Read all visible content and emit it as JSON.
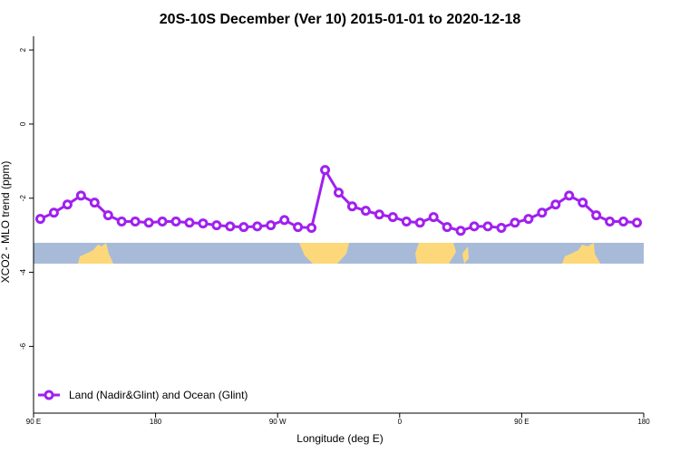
{
  "chart_data": {
    "type": "line",
    "title": "20S-10S December (Ver 10)   2015-01-01 to 2020-12-18",
    "x_label": "Longitude (deg E)",
    "y_label": "XCO2 - MLO trend (ppm)",
    "xlim": [
      90,
      540
    ],
    "xticks": [
      {
        "value": 90,
        "label": "90 E"
      },
      180,
      {
        "value": 270,
        "label": "90 W"
      },
      {
        "value": 360,
        "label": "0"
      },
      {
        "value": 450,
        "label": "90 E"
      },
      {
        "value": 540,
        "label": "180"
      }
    ],
    "ylim": [
      -7.8,
      2.37
    ],
    "yticks": [
      2,
      0,
      -2,
      -4,
      -6
    ],
    "legend": "bottom-left",
    "x": [
      95,
      105,
      115,
      125,
      135,
      145,
      155,
      165,
      175,
      185,
      195,
      205,
      215,
      225,
      235,
      245,
      255,
      265,
      275,
      285,
      295,
      305,
      315,
      325,
      335,
      345,
      355,
      365,
      375,
      385,
      395,
      405,
      415,
      425,
      435,
      445,
      455,
      465,
      475,
      485,
      495,
      505,
      515,
      525,
      535
    ],
    "series": [
      {
        "name": "Land (Nadir&Glint) and Ocean (Glint)",
        "color": "#a020f0",
        "values": [
          -2.56,
          -2.39,
          -2.17,
          -1.93,
          -2.12,
          -2.46,
          -2.63,
          -2.63,
          -2.66,
          -2.63,
          -2.63,
          -2.66,
          -2.68,
          -2.73,
          -2.76,
          -2.78,
          -2.76,
          -2.73,
          -2.59,
          -2.78,
          -2.8,
          -1.24,
          -1.85,
          -2.22,
          -2.34,
          -2.44,
          -2.51,
          -2.63,
          -2.66,
          -2.51,
          -2.78,
          -2.88,
          -2.76,
          -2.76,
          -2.8,
          -2.66,
          -2.56,
          -2.39,
          -2.17,
          -1.93,
          -2.12,
          -2.46,
          -2.63,
          -2.63,
          -2.66
        ]
      }
    ]
  }
}
